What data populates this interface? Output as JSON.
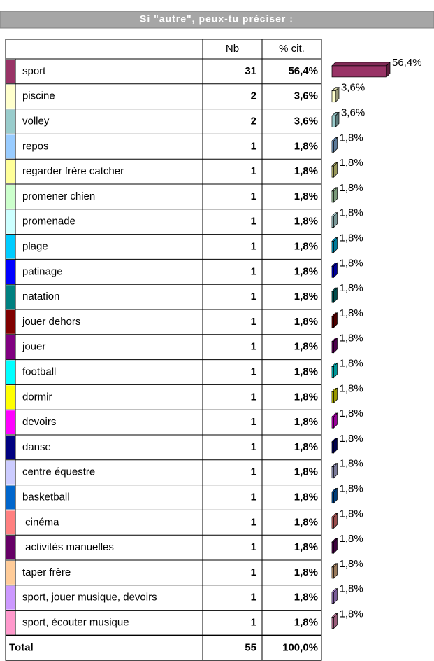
{
  "chart_data": {
    "type": "bar",
    "title": "Si \"autre\", peux-tu préciser :",
    "columns": [
      "Nb",
      "% cit."
    ],
    "categories": [
      "sport",
      "piscine",
      "volley",
      "repos",
      "regarder frère catcher",
      "promener chien",
      "promenade",
      "plage",
      "patinage",
      "natation",
      "jouer dehors",
      "jouer",
      "football",
      "dormir",
      "devoirs",
      "danse",
      "centre équestre",
      "basketball",
      " cinéma",
      " activités manuelles",
      "taper frère",
      "sport, jouer musique, devoirs",
      "sport, écouter musique"
    ],
    "counts": [
      31,
      2,
      2,
      1,
      1,
      1,
      1,
      1,
      1,
      1,
      1,
      1,
      1,
      1,
      1,
      1,
      1,
      1,
      1,
      1,
      1,
      1,
      1
    ],
    "values": [
      56.4,
      3.6,
      3.6,
      1.8,
      1.8,
      1.8,
      1.8,
      1.8,
      1.8,
      1.8,
      1.8,
      1.8,
      1.8,
      1.8,
      1.8,
      1.8,
      1.8,
      1.8,
      1.8,
      1.8,
      1.8,
      1.8,
      1.8
    ],
    "value_labels": [
      "56,4%",
      "3,6%",
      "3,6%",
      "1,8%",
      "1,8%",
      "1,8%",
      "1,8%",
      "1,8%",
      "1,8%",
      "1,8%",
      "1,8%",
      "1,8%",
      "1,8%",
      "1,8%",
      "1,8%",
      "1,8%",
      "1,8%",
      "1,8%",
      "1,8%",
      "1,8%",
      "1,8%",
      "1,8%",
      "1,8%"
    ],
    "colors": [
      "#993366",
      "#ffffcc",
      "#99cccc",
      "#99ccff",
      "#ffff99",
      "#ccffcc",
      "#ccffff",
      "#00ccff",
      "#0000ff",
      "#008080",
      "#800000",
      "#800080",
      "#00ffff",
      "#ffff00",
      "#ff00ff",
      "#000080",
      "#ccccff",
      "#0066cc",
      "#ff8080",
      "#660066",
      "#ffcc99",
      "#cc99ff",
      "#ff99cc"
    ],
    "total": {
      "label": "Total",
      "count": 55,
      "value_label": "100,0%"
    }
  }
}
